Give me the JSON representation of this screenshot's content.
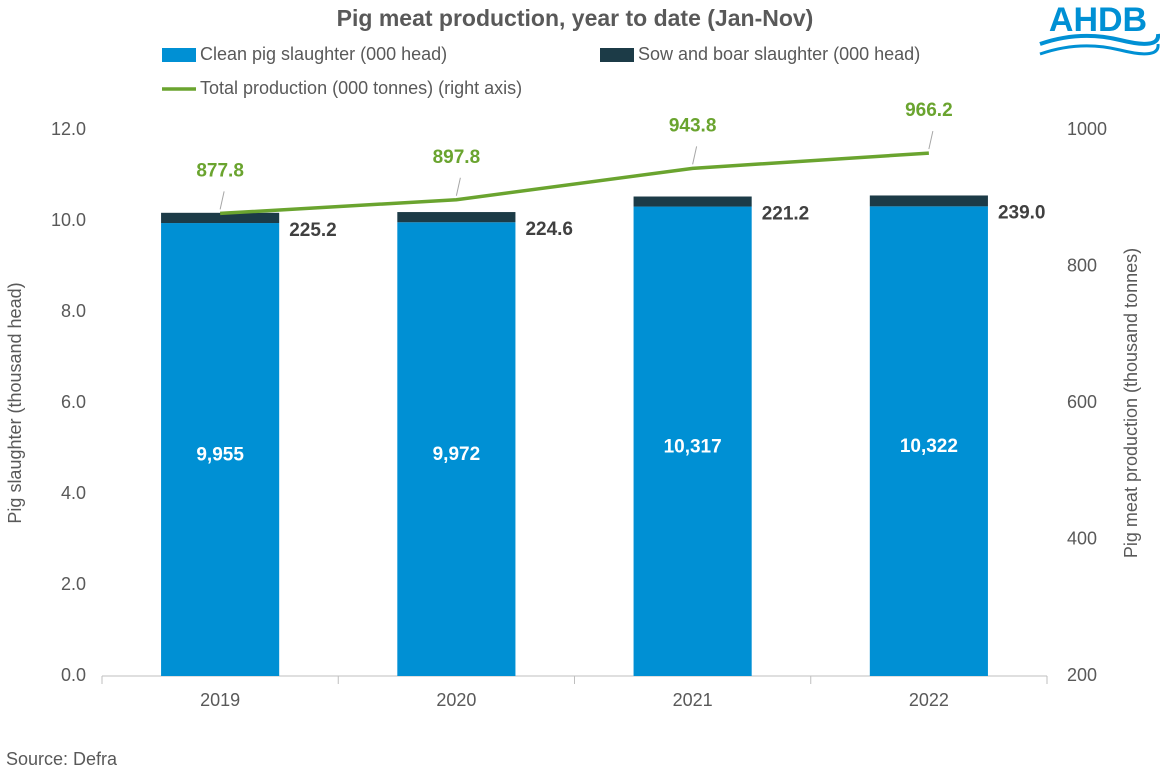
{
  "chart_data": {
    "type": "bar",
    "title": "Pig meat production, year to date (Jan-Nov)",
    "logo": "AHDB",
    "source": "Source: Defra",
    "y_label": "Pig slaughter (thousand head)",
    "y2_label": "Pig meat production (thousand tonnes)",
    "categories": [
      "2019",
      "2020",
      "2021",
      "2022"
    ],
    "series": [
      {
        "name": "Clean pig slaughter (000 head)",
        "color": "#0090d4",
        "values": [
          9.955,
          9.972,
          10.317,
          10.322
        ],
        "value_labels": [
          "9,955",
          "9,972",
          "10,317",
          "10,322"
        ]
      },
      {
        "name": "Sow and boar slaughter (000 head)",
        "color": "#1c3b47",
        "values": [
          0.2252,
          0.2246,
          0.2212,
          0.239
        ],
        "value_labels": [
          "225.2",
          "224.6",
          "221.2",
          "239.0"
        ]
      },
      {
        "name": "Total production (000 tonnes) (right axis)",
        "color": "#6aa42f",
        "type": "line",
        "axis": "y2",
        "values": [
          877.8,
          897.8,
          943.8,
          966.2
        ]
      }
    ],
    "ylim": [
      0,
      12
    ],
    "yticks": [
      {
        "value": 0,
        "label": "0.0"
      },
      {
        "value": 2,
        "label": "2.0"
      },
      {
        "value": 4,
        "label": "4.0"
      },
      {
        "value": 6,
        "label": "6.0"
      },
      {
        "value": 8,
        "label": "8.0"
      },
      {
        "value": 10,
        "label": "10.0"
      },
      {
        "value": 12,
        "label": "12.0"
      }
    ],
    "y2lim": [
      200,
      1000
    ],
    "y2ticks": [
      200,
      400,
      600,
      800,
      1000
    ],
    "stacked": true,
    "grid": false
  }
}
